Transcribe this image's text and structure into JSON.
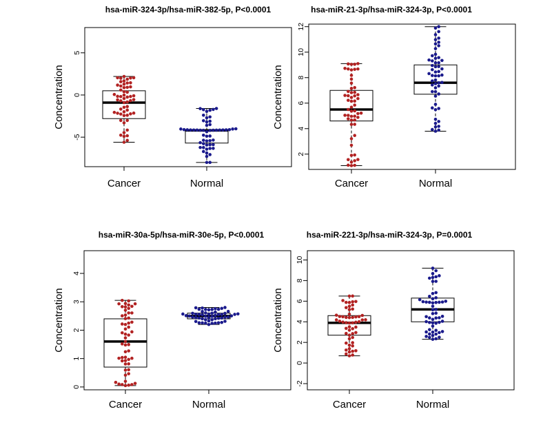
{
  "colors": {
    "cancer": "#b22222",
    "normal": "#1a1a8c",
    "box": "#000000"
  },
  "chart_data": [
    {
      "type": "box",
      "title": "hsa-miR-324-3p/hsa-miR-382-5p, P<0.0001",
      "ylabel": "Concentration",
      "categories": [
        "Cancer",
        "Normal"
      ],
      "ylim": [
        -8.5,
        8
      ],
      "yticks": [
        -5,
        0,
        5
      ],
      "boxes": [
        {
          "name": "Cancer",
          "q1": -2.8,
          "median": -0.9,
          "q3": 0.5,
          "whisker_low": -5.6,
          "whisker_high": 2.2
        },
        {
          "name": "Normal",
          "q1": -5.7,
          "median": -4.2,
          "q3": -4.1,
          "whisker_low": -8.0,
          "whisker_high": -1.6
        }
      ]
    },
    {
      "type": "box",
      "title": "hsa-miR-21-3p/hsa-miR-324-3p, P<0.0001",
      "ylabel": "Concentration",
      "categories": [
        "Cancer",
        "Normal"
      ],
      "ylim": [
        0.8,
        12.2
      ],
      "yticks": [
        2,
        4,
        6,
        8,
        10,
        12
      ],
      "boxes": [
        {
          "name": "Cancer",
          "q1": 4.6,
          "median": 5.5,
          "q3": 7.0,
          "whisker_low": 1.1,
          "whisker_high": 9.1
        },
        {
          "name": "Normal",
          "q1": 6.7,
          "median": 7.6,
          "q3": 9.0,
          "whisker_low": 3.8,
          "whisker_high": 12.0
        }
      ]
    },
    {
      "type": "box",
      "title": "hsa-miR-30a-5p/hsa-miR-30e-5p, P<0.0001",
      "ylabel": "Concentration",
      "categories": [
        "Cancer",
        "Normal"
      ],
      "ylim": [
        -0.1,
        4.8
      ],
      "yticks": [
        0,
        1,
        2,
        3,
        4
      ],
      "boxes": [
        {
          "name": "Cancer",
          "q1": 0.7,
          "median": 1.6,
          "q3": 2.4,
          "whisker_low": 0.05,
          "whisker_high": 3.05
        },
        {
          "name": "Normal",
          "q1": 2.4,
          "median": 2.5,
          "q3": 2.6,
          "whisker_low": 2.2,
          "whisker_high": 2.8
        }
      ]
    },
    {
      "type": "box",
      "title": "hsa-miR-221-3p/hsa-miR-324-3p, P=0.0001",
      "ylabel": "Concentration",
      "categories": [
        "Cancer",
        "Normal"
      ],
      "ylim": [
        -2.6,
        10.9
      ],
      "yticks": [
        -2,
        0,
        2,
        4,
        6,
        8,
        10
      ],
      "boxes": [
        {
          "name": "Cancer",
          "q1": 2.7,
          "median": 3.9,
          "q3": 4.6,
          "whisker_low": 0.7,
          "whisker_high": 6.5
        },
        {
          "name": "Normal",
          "q1": 4.0,
          "median": 5.2,
          "q3": 6.3,
          "whisker_low": 2.3,
          "whisker_high": 9.2
        }
      ]
    }
  ]
}
